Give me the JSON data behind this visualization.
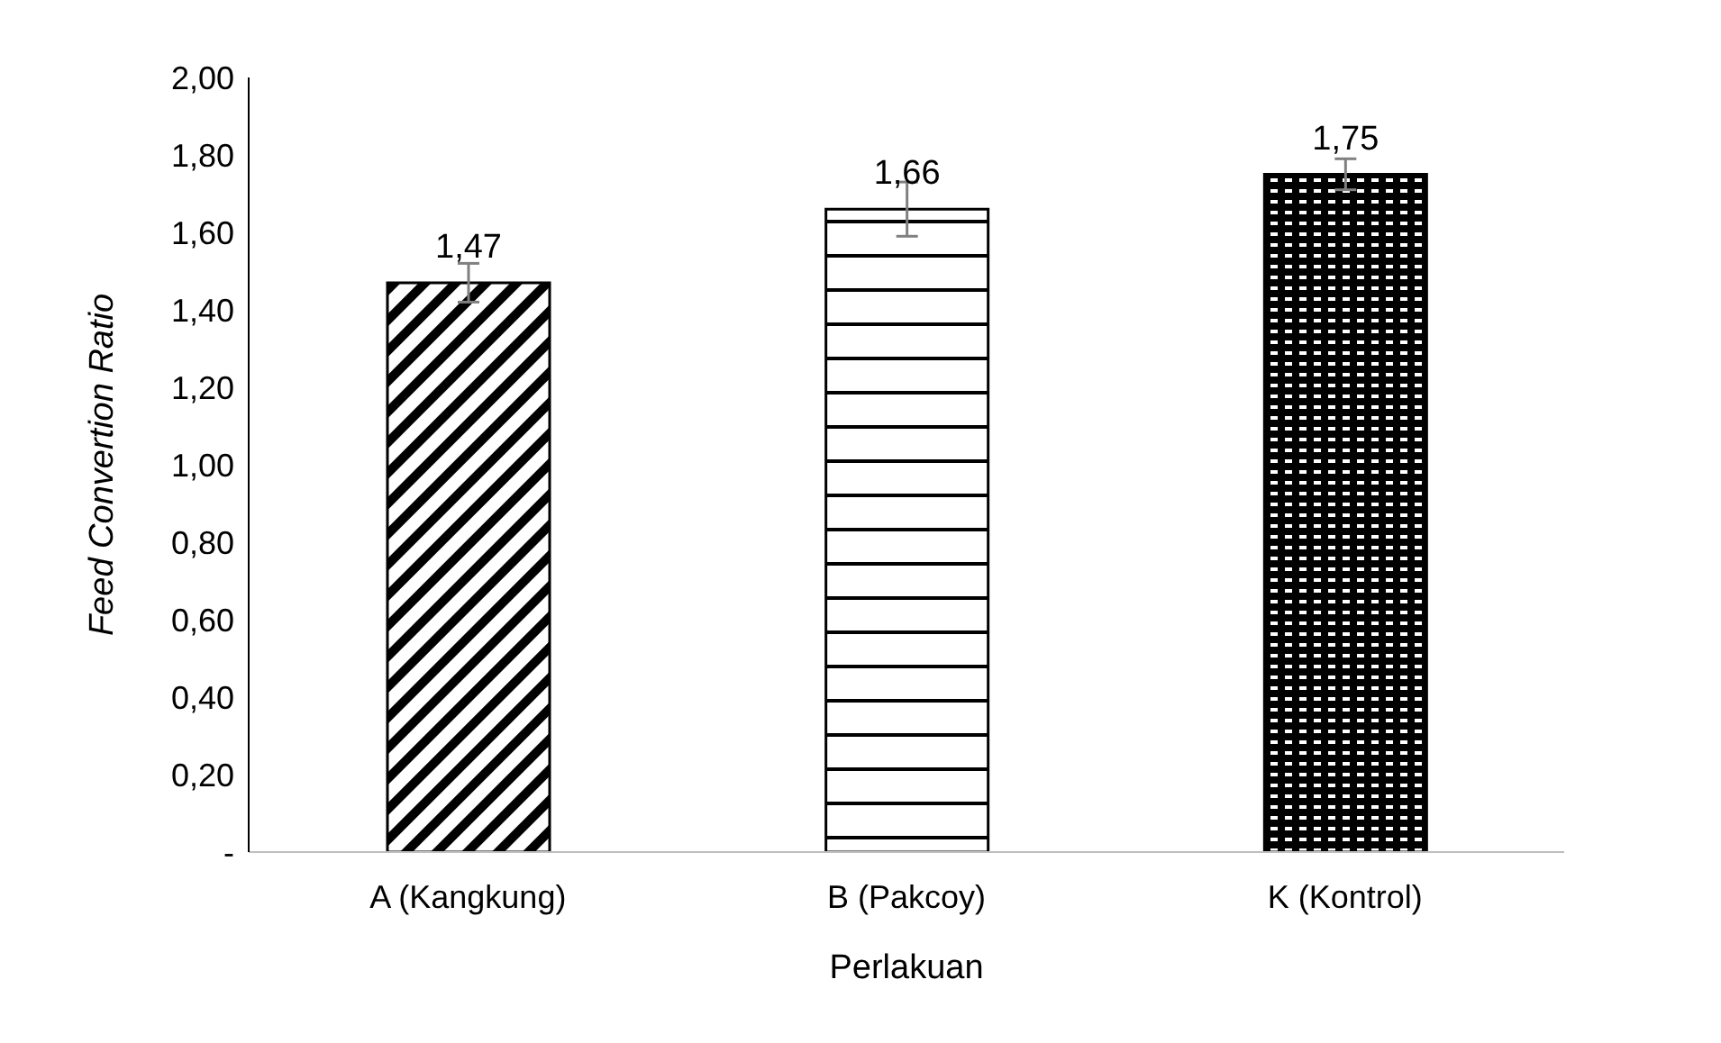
{
  "chart_data": {
    "type": "bar",
    "xlabel": "Perlakuan",
    "ylabel": "Feed Convertion Ratio",
    "categories": [
      "A (Kangkung)",
      "B (Pakcoy)",
      "K (Kontrol)"
    ],
    "values": [
      1.47,
      1.66,
      1.75
    ],
    "colors": [
      "#000000",
      "#000000",
      "#000000"
    ],
    "errors": [
      0.05,
      0.07,
      0.04
    ],
    "value_labels": [
      "1,47",
      "1,66",
      "1,75"
    ],
    "ylim": [
      0,
      2
    ],
    "yticks": [
      {
        "value": 0,
        "label": "-"
      },
      {
        "value": 0.2,
        "label": "0,20"
      },
      {
        "value": 0.4,
        "label": "0,40"
      },
      {
        "value": 0.6,
        "label": "0,60"
      },
      {
        "value": 0.8,
        "label": "0,80"
      },
      {
        "value": 1,
        "label": "1,00"
      },
      {
        "value": 1.2,
        "label": "1,20"
      },
      {
        "value": 1.4,
        "label": "1,40"
      },
      {
        "value": 1.6,
        "label": "1,60"
      },
      {
        "value": 1.8,
        "label": "1,80"
      },
      {
        "value": 2,
        "label": "2,00"
      }
    ],
    "grid": false,
    "legend": false
  }
}
